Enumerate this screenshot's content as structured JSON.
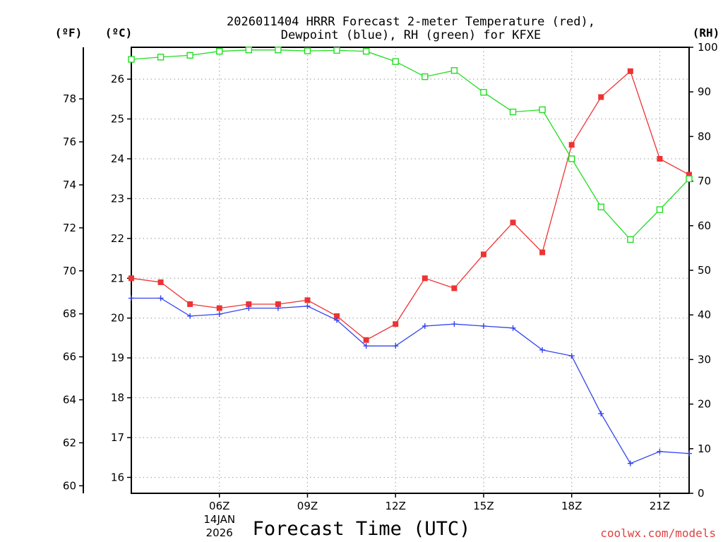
{
  "chart_data": {
    "type": "line",
    "title_line1": "2026011404 HRRR Forecast 2-meter Temperature (red),",
    "title_line2": "Dewpoint (blue), RH (green) for KFXE",
    "xlabel": "Forecast Time (UTC)",
    "ylabel_left_outer": "(ºF)",
    "ylabel_left_inner": "(ºC)",
    "ylabel_right": "(RH)",
    "watermark": "coolwx.com/models",
    "x_hours": [
      3,
      4,
      5,
      6,
      7,
      8,
      9,
      10,
      11,
      12,
      13,
      14,
      15,
      16,
      17,
      18,
      19,
      20,
      21,
      22
    ],
    "xlim": [
      3,
      22
    ],
    "x_ticks": [
      {
        "hour": 6,
        "label": "06Z",
        "sub1": "14JAN",
        "sub2": "2026"
      },
      {
        "hour": 9,
        "label": "09Z"
      },
      {
        "hour": 12,
        "label": "12Z"
      },
      {
        "hour": 15,
        "label": "15Z"
      },
      {
        "hour": 18,
        "label": "18Z"
      },
      {
        "hour": 21,
        "label": "21Z"
      }
    ],
    "celsius_axis": {
      "ylim": [
        15.6,
        26.8
      ],
      "ticks": [
        16,
        17,
        18,
        19,
        20,
        21,
        22,
        23,
        24,
        25,
        26
      ]
    },
    "fahrenheit_axis": {
      "ylim": [
        59.65,
        80.4
      ],
      "ticks": [
        60,
        62,
        64,
        66,
        68,
        70,
        72,
        74,
        76,
        78
      ]
    },
    "rh_axis": {
      "ylim": [
        0,
        100
      ],
      "ticks": [
        0,
        10,
        20,
        30,
        40,
        50,
        60,
        70,
        80,
        90,
        100
      ]
    },
    "series": [
      {
        "name": "2-meter Temperature",
        "units": "C",
        "color": "#ee3333",
        "marker": "filled-square",
        "values": [
          21.0,
          20.9,
          20.35,
          20.25,
          20.35,
          20.35,
          20.45,
          20.05,
          19.45,
          19.85,
          21.0,
          20.75,
          21.6,
          22.4,
          21.65,
          24.35,
          25.55,
          26.2,
          24.0,
          23.6
        ]
      },
      {
        "name": "Dewpoint",
        "units": "C",
        "color": "#3344ee",
        "marker": "plus",
        "values": [
          20.5,
          20.5,
          20.05,
          20.1,
          20.25,
          20.25,
          20.3,
          19.95,
          19.3,
          19.3,
          19.8,
          19.85,
          19.8,
          19.75,
          19.2,
          19.05,
          17.6,
          16.35,
          16.65,
          16.6
        ]
      },
      {
        "name": "RH",
        "units": "%",
        "color": "#22dd22",
        "marker": "open-square",
        "values": [
          97.3,
          97.8,
          98.2,
          99.1,
          99.4,
          99.4,
          99.2,
          99.3,
          99.1,
          96.8,
          93.4,
          94.8,
          89.9,
          85.5,
          86.0,
          75.0,
          64.2,
          56.9,
          63.6,
          70.5
        ]
      }
    ]
  }
}
